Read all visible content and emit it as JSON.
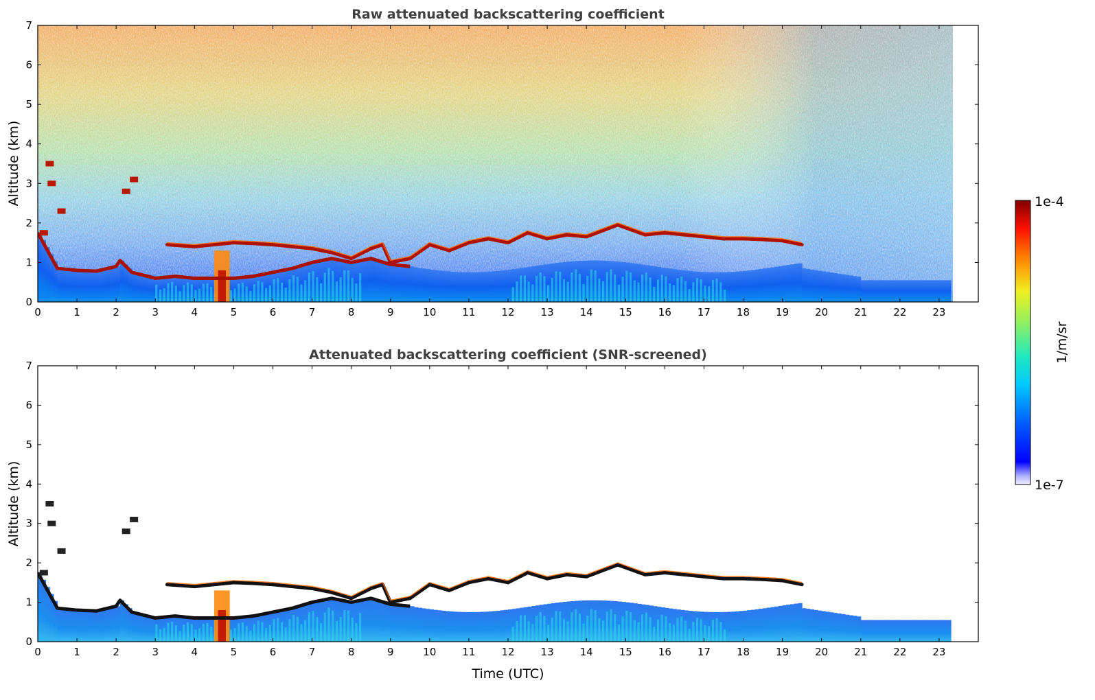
{
  "chart_data": [
    {
      "type": "heatmap",
      "title": "Raw attenuated backscattering coefficient",
      "xlabel": "",
      "ylabel": "Altitude (km)",
      "x_ticks": [
        "0",
        "1",
        "2",
        "3",
        "4",
        "5",
        "6",
        "7",
        "8",
        "9",
        "10",
        "11",
        "12",
        "13",
        "14",
        "15",
        "16",
        "17",
        "18",
        "19",
        "20",
        "21",
        "22",
        "23"
      ],
      "y_ticks": [
        "0",
        "1",
        "2",
        "3",
        "4",
        "5",
        "6",
        "7"
      ],
      "xlim": [
        0,
        24
      ],
      "ylim": [
        0,
        7
      ],
      "data_x_range": [
        0,
        23.3
      ],
      "grid": false,
      "scale": "log",
      "boundary_layer_top_km": [
        [
          0.0,
          1.75
        ],
        [
          0.5,
          0.85
        ],
        [
          1.0,
          0.8
        ],
        [
          1.5,
          0.78
        ],
        [
          2.0,
          0.9
        ],
        [
          2.1,
          1.05
        ],
        [
          2.4,
          0.75
        ],
        [
          3.0,
          0.6
        ],
        [
          3.5,
          0.65
        ],
        [
          4.0,
          0.6
        ],
        [
          4.5,
          0.6
        ],
        [
          5.0,
          0.6
        ],
        [
          5.5,
          0.65
        ],
        [
          6.0,
          0.75
        ],
        [
          6.5,
          0.85
        ],
        [
          7.0,
          1.0
        ],
        [
          7.5,
          1.1
        ],
        [
          8.0,
          1.0
        ],
        [
          8.5,
          1.1
        ],
        [
          9.0,
          0.95
        ],
        [
          9.5,
          0.9
        ]
      ],
      "cloud_layer_km": [
        [
          0.0,
          1.75
        ],
        [
          3.3,
          1.45
        ],
        [
          4.0,
          1.4
        ],
        [
          4.5,
          1.45
        ],
        [
          5.0,
          1.5
        ],
        [
          5.5,
          1.48
        ],
        [
          6.0,
          1.45
        ],
        [
          7.0,
          1.35
        ],
        [
          7.5,
          1.25
        ],
        [
          8.0,
          1.1
        ],
        [
          8.5,
          1.35
        ],
        [
          8.8,
          1.45
        ],
        [
          9.0,
          1.0
        ],
        [
          9.5,
          1.1
        ],
        [
          10.0,
          1.45
        ],
        [
          10.5,
          1.3
        ],
        [
          11.0,
          1.5
        ],
        [
          11.5,
          1.6
        ],
        [
          12.0,
          1.5
        ],
        [
          12.5,
          1.75
        ],
        [
          13.0,
          1.6
        ],
        [
          13.5,
          1.7
        ],
        [
          14.0,
          1.65
        ],
        [
          14.8,
          1.95
        ],
        [
          15.5,
          1.7
        ],
        [
          16.0,
          1.75
        ],
        [
          16.5,
          1.7
        ],
        [
          17.0,
          1.65
        ],
        [
          17.5,
          1.6
        ],
        [
          18.0,
          1.6
        ],
        [
          18.5,
          1.58
        ],
        [
          19.0,
          1.55
        ],
        [
          19.5,
          1.45
        ]
      ]
    },
    {
      "type": "heatmap",
      "title": "Attenuated backscattering coefficient (SNR-screened)",
      "xlabel": "Time (UTC)",
      "ylabel": "Altitude (km)",
      "x_ticks": [
        "0",
        "1",
        "2",
        "3",
        "4",
        "5",
        "6",
        "7",
        "8",
        "9",
        "10",
        "11",
        "12",
        "13",
        "14",
        "15",
        "16",
        "17",
        "18",
        "19",
        "20",
        "21",
        "22",
        "23"
      ],
      "y_ticks": [
        "0",
        "1",
        "2",
        "3",
        "4",
        "5",
        "6",
        "7"
      ],
      "xlim": [
        0,
        24
      ],
      "ylim": [
        0,
        7
      ],
      "data_x_range": [
        0,
        23.3
      ],
      "grid": false,
      "scale": "log"
    }
  ],
  "colorbar": {
    "label": "1/m/sr",
    "max_label": "1e-4",
    "min_label": "1e-7",
    "colormap": "jet",
    "range": [
      1e-07,
      0.0001
    ]
  }
}
